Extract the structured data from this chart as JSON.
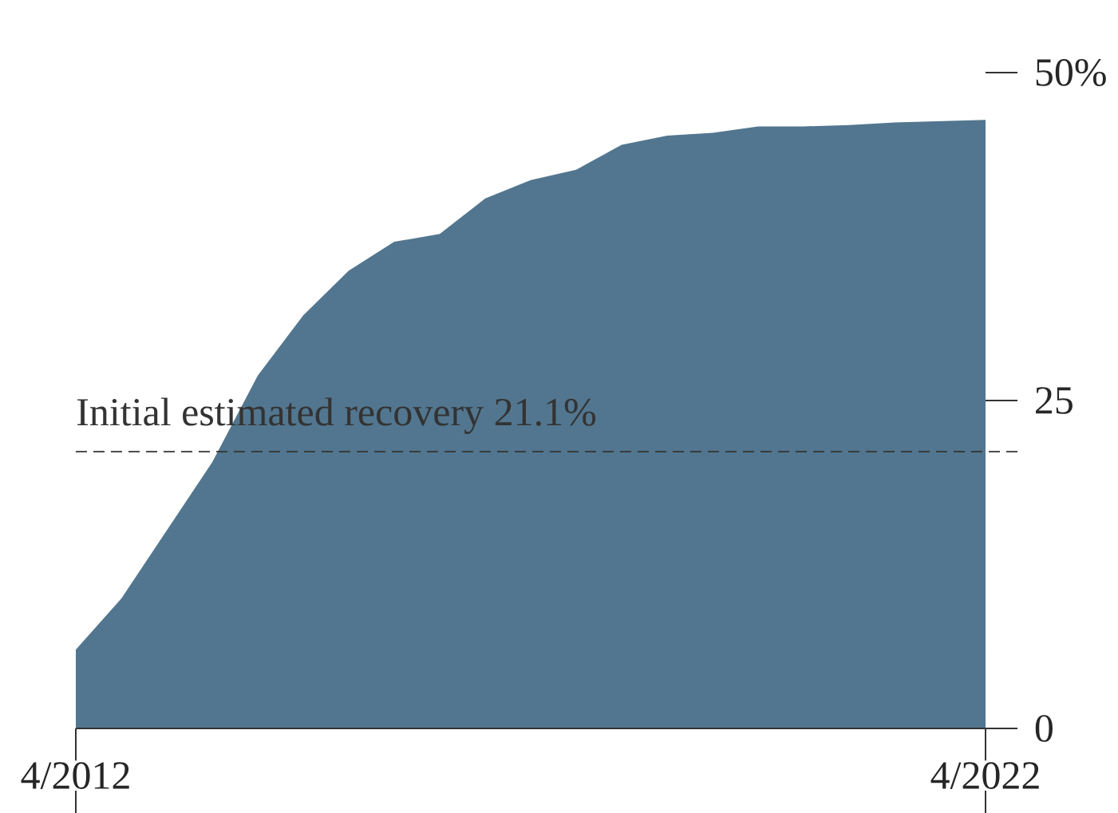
{
  "chart_data": {
    "type": "area",
    "x": [
      "2012-04",
      "2012-10",
      "2013-04",
      "2013-10",
      "2014-04",
      "2014-10",
      "2015-04",
      "2015-10",
      "2016-04",
      "2016-10",
      "2017-04",
      "2017-10",
      "2018-04",
      "2018-10",
      "2019-04",
      "2019-10",
      "2020-04",
      "2020-10",
      "2021-04",
      "2021-10",
      "2022-04"
    ],
    "values": [
      6.0,
      9.9,
      15.1,
      20.3,
      26.9,
      31.5,
      34.9,
      37.1,
      37.7,
      40.4,
      41.8,
      42.6,
      44.5,
      45.2,
      45.4,
      45.9,
      45.9,
      46.0,
      46.2,
      46.3,
      46.4
    ],
    "color": "#52768f",
    "xlim": [
      "2012-04",
      "2022-04"
    ],
    "xticks": [
      {
        "value": "2012-04",
        "label": "4/2012"
      },
      {
        "value": "2022-04",
        "label": "4/2022"
      }
    ],
    "ylim": [
      0,
      50
    ],
    "yticks": [
      0,
      25,
      {
        "value": 50,
        "label": "50%"
      }
    ],
    "ref_lines": [
      {
        "axis": "y",
        "value": 21.1,
        "label": "Initial estimated recovery 21.1%",
        "line_style": "dashed",
        "color": "#333333"
      }
    ],
    "grid": false
  }
}
